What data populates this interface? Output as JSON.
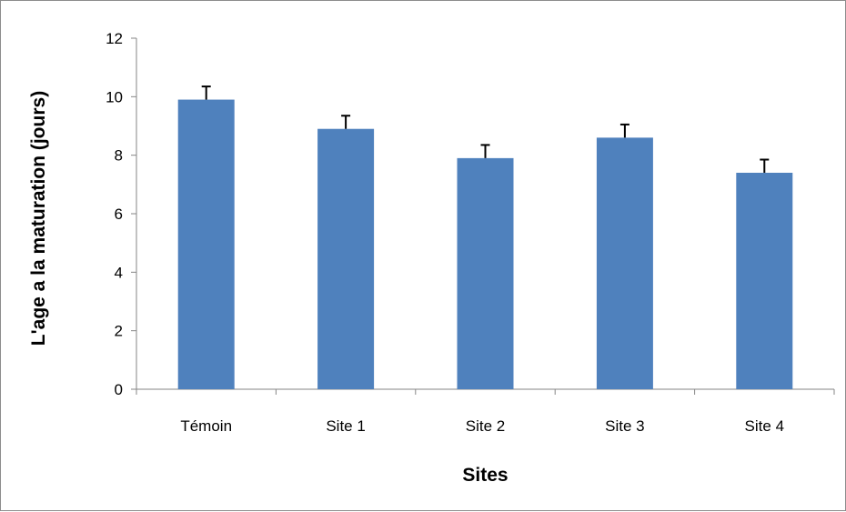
{
  "chart_data": {
    "type": "bar",
    "title": "",
    "xlabel": "Sites",
    "ylabel": "L'age a la maturation (jours)",
    "categories": [
      "Témoin",
      "Site 1",
      "Site 2",
      "Site 3",
      "Site 4"
    ],
    "values": [
      9.9,
      8.9,
      7.9,
      8.6,
      7.4
    ],
    "error": [
      0.45,
      0.45,
      0.45,
      0.45,
      0.45
    ],
    "ylim": [
      0,
      12
    ],
    "yticks": [
      0,
      2,
      4,
      6,
      8,
      10,
      12
    ],
    "grid": false,
    "legend": "none",
    "bar_color": "#4f81bd",
    "axis_color": "#868686"
  }
}
